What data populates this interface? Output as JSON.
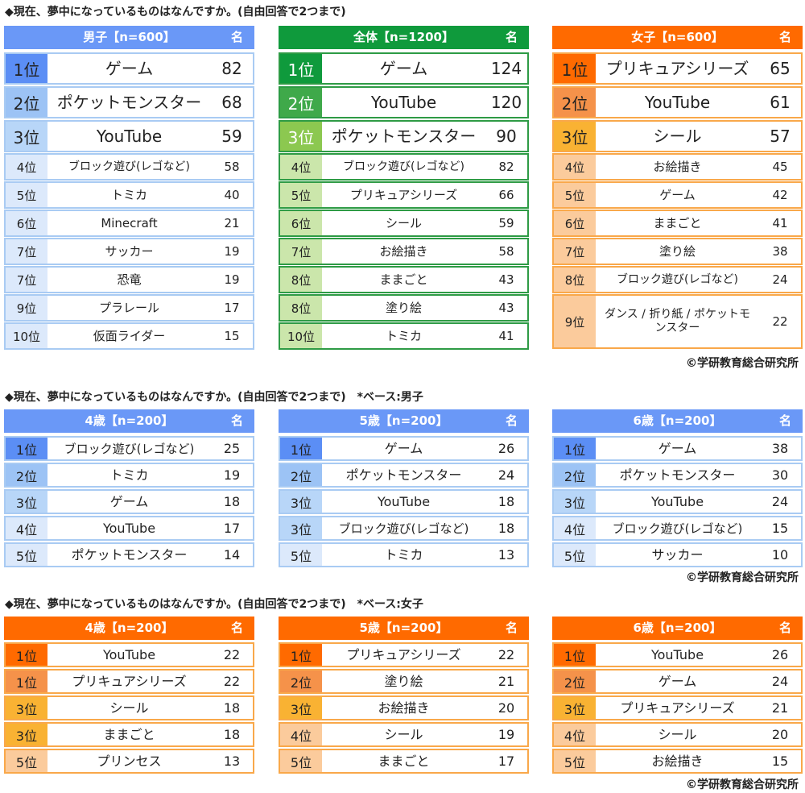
{
  "palettes": {
    "blue": {
      "header": "#6a98f7",
      "border": "#a9cbf3",
      "tiers": [
        "#5b8ef5",
        "#9cc3f5",
        "#b8d6f8",
        "#dce9fb"
      ]
    },
    "green": {
      "header": "#0f9a3c",
      "border": "#2e9b45",
      "tiers": [
        "#0f9a3c",
        "#3fa94a",
        "#8cc850",
        "#cbe6ab"
      ]
    },
    "orange": {
      "header": "#ff6a00",
      "border": "#f9a84a",
      "tiers": [
        "#ff6a00",
        "#f5924a",
        "#f9b233",
        "#fbcb9c"
      ]
    }
  },
  "sections": [
    {
      "title": "◆現在、夢中になっているものはなんですか。(自由回答で2つまで)",
      "copyright": "©学研教育総合研究所",
      "tables": [
        {
          "palette": "blue",
          "header": "男子【n=600】",
          "unit": "名",
          "rows": [
            {
              "rank": "1位",
              "name": "ゲーム",
              "value": 82,
              "tier": 0
            },
            {
              "rank": "2位",
              "name": "ポケットモンスター",
              "value": 68,
              "tier": 1
            },
            {
              "rank": "3位",
              "name": "YouTube",
              "value": 59,
              "tier": 2
            },
            {
              "rank": "4位",
              "name": "ブロック遊び(レゴなど)",
              "value": 58,
              "tier": 3
            },
            {
              "rank": "5位",
              "name": "トミカ",
              "value": 40,
              "tier": 3
            },
            {
              "rank": "6位",
              "name": "Minecraft",
              "value": 21,
              "tier": 3
            },
            {
              "rank": "7位",
              "name": "サッカー",
              "value": 19,
              "tier": 3
            },
            {
              "rank": "7位",
              "name": "恐竜",
              "value": 19,
              "tier": 3
            },
            {
              "rank": "9位",
              "name": "プラレール",
              "value": 17,
              "tier": 3
            },
            {
              "rank": "10位",
              "name": "仮面ライダー",
              "value": 15,
              "tier": 3
            }
          ]
        },
        {
          "palette": "green",
          "header": "全体【n=1200】",
          "unit": "名",
          "rows": [
            {
              "rank": "1位",
              "name": "ゲーム",
              "value": 124,
              "tier": 0
            },
            {
              "rank": "2位",
              "name": "YouTube",
              "value": 120,
              "tier": 1
            },
            {
              "rank": "3位",
              "name": "ポケットモンスター",
              "value": 90,
              "tier": 2
            },
            {
              "rank": "4位",
              "name": "ブロック遊び(レゴなど)",
              "value": 82,
              "tier": 3
            },
            {
              "rank": "5位",
              "name": "プリキュアシリーズ",
              "value": 66,
              "tier": 3
            },
            {
              "rank": "6位",
              "name": "シール",
              "value": 59,
              "tier": 3
            },
            {
              "rank": "7位",
              "name": "お絵描き",
              "value": 58,
              "tier": 3
            },
            {
              "rank": "8位",
              "name": "ままごと",
              "value": 43,
              "tier": 3
            },
            {
              "rank": "8位",
              "name": "塗り絵",
              "value": 43,
              "tier": 3
            },
            {
              "rank": "10位",
              "name": "トミカ",
              "value": 41,
              "tier": 3
            }
          ]
        },
        {
          "palette": "orange",
          "header": "女子【n=600】",
          "unit": "名",
          "rows": [
            {
              "rank": "1位",
              "name": "プリキュアシリーズ",
              "value": 65,
              "tier": 0
            },
            {
              "rank": "2位",
              "name": "YouTube",
              "value": 61,
              "tier": 1
            },
            {
              "rank": "3位",
              "name": "シール",
              "value": 57,
              "tier": 2
            },
            {
              "rank": "4位",
              "name": "お絵描き",
              "value": 45,
              "tier": 3
            },
            {
              "rank": "5位",
              "name": "ゲーム",
              "value": 42,
              "tier": 3
            },
            {
              "rank": "6位",
              "name": "ままごと",
              "value": 41,
              "tier": 3
            },
            {
              "rank": "7位",
              "name": "塗り絵",
              "value": 38,
              "tier": 3
            },
            {
              "rank": "8位",
              "name": "ブロック遊び(レゴなど)",
              "value": 24,
              "tier": 3
            },
            {
              "rank": "9位",
              "name": "ダンス / 折り紙 / ポケットモンスター",
              "value": 22,
              "tier": 3
            }
          ]
        }
      ]
    },
    {
      "title": "◆現在、夢中になっているものはなんですか。(自由回答で2つまで)　*ベース:男子",
      "copyright": "©学研教育総合研究所",
      "tables": [
        {
          "palette": "blue",
          "header": "4歳【n=200】",
          "unit": "名",
          "rows": [
            {
              "rank": "1位",
              "name": "ブロック遊び(レゴなど)",
              "value": 25,
              "tier": 0
            },
            {
              "rank": "2位",
              "name": "トミカ",
              "value": 19,
              "tier": 1
            },
            {
              "rank": "3位",
              "name": "ゲーム",
              "value": 18,
              "tier": 2
            },
            {
              "rank": "4位",
              "name": "YouTube",
              "value": 17,
              "tier": 3
            },
            {
              "rank": "5位",
              "name": "ポケットモンスター",
              "value": 14,
              "tier": 3
            }
          ]
        },
        {
          "palette": "blue",
          "header": "5歳【n=200】",
          "unit": "名",
          "rows": [
            {
              "rank": "1位",
              "name": "ゲーム",
              "value": 26,
              "tier": 0
            },
            {
              "rank": "2位",
              "name": "ポケットモンスター",
              "value": 24,
              "tier": 1
            },
            {
              "rank": "3位",
              "name": "YouTube",
              "value": 18,
              "tier": 2
            },
            {
              "rank": "3位",
              "name": "ブロック遊び(レゴなど)",
              "value": 18,
              "tier": 2
            },
            {
              "rank": "5位",
              "name": "トミカ",
              "value": 13,
              "tier": 3
            }
          ]
        },
        {
          "palette": "blue",
          "header": "6歳【n=200】",
          "unit": "名",
          "rows": [
            {
              "rank": "1位",
              "name": "ゲーム",
              "value": 38,
              "tier": 0
            },
            {
              "rank": "2位",
              "name": "ポケットモンスター",
              "value": 30,
              "tier": 1
            },
            {
              "rank": "3位",
              "name": "YouTube",
              "value": 24,
              "tier": 2
            },
            {
              "rank": "4位",
              "name": "ブロック遊び(レゴなど)",
              "value": 15,
              "tier": 3
            },
            {
              "rank": "5位",
              "name": "サッカー",
              "value": 10,
              "tier": 3
            }
          ]
        }
      ]
    },
    {
      "title": "◆現在、夢中になっているものはなんですか。(自由回答で2つまで)　*ベース:女子",
      "copyright": "©学研教育総合研究所",
      "tables": [
        {
          "palette": "orange",
          "header": "4歳【n=200】",
          "unit": "名",
          "rows": [
            {
              "rank": "1位",
              "name": "YouTube",
              "value": 22,
              "tier": 0
            },
            {
              "rank": "1位",
              "name": "プリキュアシリーズ",
              "value": 22,
              "tier": 1
            },
            {
              "rank": "3位",
              "name": "シール",
              "value": 18,
              "tier": 2
            },
            {
              "rank": "3位",
              "name": "ままごと",
              "value": 18,
              "tier": 2
            },
            {
              "rank": "5位",
              "name": "プリンセス",
              "value": 13,
              "tier": 3
            }
          ]
        },
        {
          "palette": "orange",
          "header": "5歳【n=200】",
          "unit": "名",
          "rows": [
            {
              "rank": "1位",
              "name": "プリキュアシリーズ",
              "value": 22,
              "tier": 0
            },
            {
              "rank": "2位",
              "name": "塗り絵",
              "value": 21,
              "tier": 1
            },
            {
              "rank": "3位",
              "name": "お絵描き",
              "value": 20,
              "tier": 2
            },
            {
              "rank": "4位",
              "name": "シール",
              "value": 19,
              "tier": 3
            },
            {
              "rank": "5位",
              "name": "ままごと",
              "value": 17,
              "tier": 3
            }
          ]
        },
        {
          "palette": "orange",
          "header": "6歳【n=200】",
          "unit": "名",
          "rows": [
            {
              "rank": "1位",
              "name": "YouTube",
              "value": 26,
              "tier": 0
            },
            {
              "rank": "2位",
              "name": "ゲーム",
              "value": 24,
              "tier": 1
            },
            {
              "rank": "3位",
              "name": "プリキュアシリーズ",
              "value": 21,
              "tier": 2
            },
            {
              "rank": "4位",
              "name": "シール",
              "value": 20,
              "tier": 3
            },
            {
              "rank": "5位",
              "name": "お絵描き",
              "value": 15,
              "tier": 3
            }
          ]
        }
      ]
    }
  ]
}
